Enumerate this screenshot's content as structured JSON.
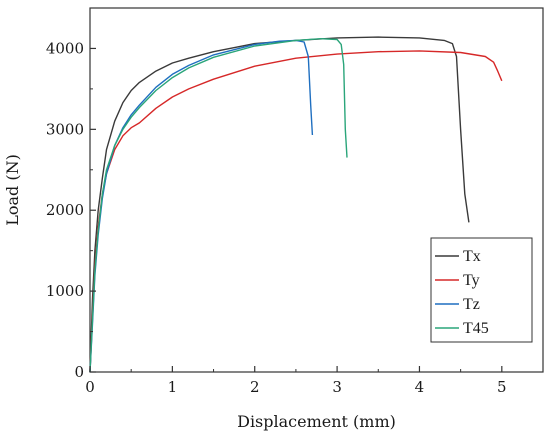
{
  "chart_data": {
    "type": "line",
    "xlabel": "Displacement (mm)",
    "ylabel": "Load (N)",
    "xlim": [
      0,
      5.5
    ],
    "ylim": [
      0,
      4500
    ],
    "xticks": [
      0,
      1,
      2,
      3,
      4,
      5
    ],
    "yticks": [
      0,
      1000,
      2000,
      3000,
      4000
    ],
    "grid": false,
    "legend_position": "bottom-right",
    "series": [
      {
        "name": "Tx",
        "color": "#3a3a3a",
        "x": [
          0,
          0.03,
          0.06,
          0.1,
          0.15,
          0.2,
          0.3,
          0.4,
          0.5,
          0.6,
          0.8,
          1.0,
          1.2,
          1.5,
          1.8,
          2.0,
          2.5,
          3.0,
          3.5,
          4.0,
          4.3,
          4.4,
          4.45,
          4.5,
          4.55,
          4.6
        ],
        "y": [
          0,
          900,
          1500,
          2000,
          2400,
          2750,
          3100,
          3330,
          3480,
          3580,
          3720,
          3820,
          3880,
          3960,
          4020,
          4060,
          4100,
          4130,
          4140,
          4130,
          4100,
          4060,
          3900,
          3000,
          2200,
          1850
        ]
      },
      {
        "name": "Ty",
        "color": "#d62828",
        "x": [
          0,
          0.03,
          0.06,
          0.1,
          0.15,
          0.2,
          0.3,
          0.4,
          0.5,
          0.6,
          0.8,
          1.0,
          1.2,
          1.5,
          2.0,
          2.5,
          3.0,
          3.5,
          4.0,
          4.5,
          4.8,
          4.9,
          4.95,
          5.0
        ],
        "y": [
          0,
          700,
          1300,
          1800,
          2200,
          2450,
          2750,
          2920,
          3020,
          3080,
          3260,
          3400,
          3500,
          3620,
          3780,
          3880,
          3930,
          3960,
          3970,
          3950,
          3900,
          3830,
          3720,
          3600
        ]
      },
      {
        "name": "Tz",
        "color": "#1f6fc0",
        "x": [
          0,
          0.03,
          0.06,
          0.1,
          0.15,
          0.2,
          0.3,
          0.4,
          0.5,
          0.6,
          0.8,
          1.0,
          1.2,
          1.5,
          2.0,
          2.3,
          2.5,
          2.6,
          2.65,
          2.68,
          2.7
        ],
        "y": [
          0,
          600,
          1200,
          1700,
          2150,
          2450,
          2800,
          3020,
          3180,
          3300,
          3520,
          3680,
          3790,
          3920,
          4050,
          4090,
          4100,
          4080,
          3900,
          3300,
          2930
        ]
      },
      {
        "name": "T45",
        "color": "#2aa57a",
        "x": [
          0,
          0.03,
          0.06,
          0.1,
          0.15,
          0.2,
          0.3,
          0.4,
          0.5,
          0.6,
          0.8,
          1.0,
          1.2,
          1.5,
          2.0,
          2.5,
          2.8,
          3.0,
          3.05,
          3.08,
          3.1,
          3.12
        ],
        "y": [
          0,
          650,
          1250,
          1750,
          2200,
          2500,
          2800,
          3000,
          3150,
          3270,
          3480,
          3640,
          3760,
          3890,
          4030,
          4100,
          4120,
          4110,
          4050,
          3800,
          3000,
          2650
        ]
      }
    ]
  }
}
